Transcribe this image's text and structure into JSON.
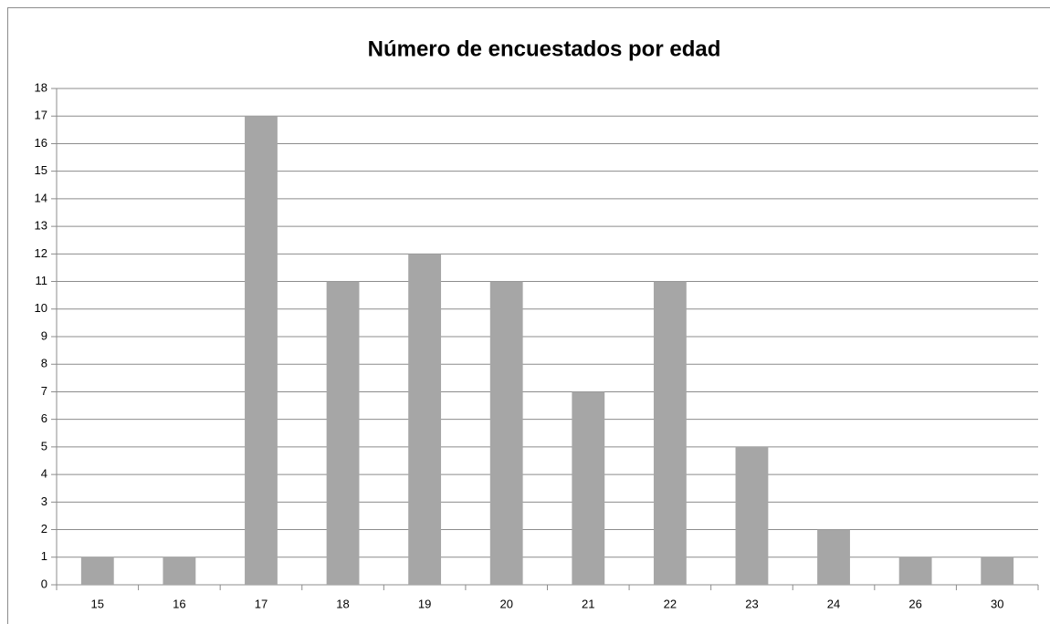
{
  "chart_data": {
    "type": "bar",
    "title": "Número de encuestados por edad",
    "categories": [
      "15",
      "16",
      "17",
      "18",
      "19",
      "20",
      "21",
      "22",
      "23",
      "24",
      "26",
      "30"
    ],
    "values": [
      1,
      1,
      17,
      11,
      12,
      11,
      7,
      11,
      5,
      2,
      1,
      1
    ],
    "color": "#a6a6a6",
    "ylim": [
      0,
      18
    ],
    "yticks": [
      0,
      1,
      2,
      3,
      4,
      5,
      6,
      7,
      8,
      9,
      10,
      11,
      12,
      13,
      14,
      15,
      16,
      17,
      18
    ],
    "grid": true
  }
}
